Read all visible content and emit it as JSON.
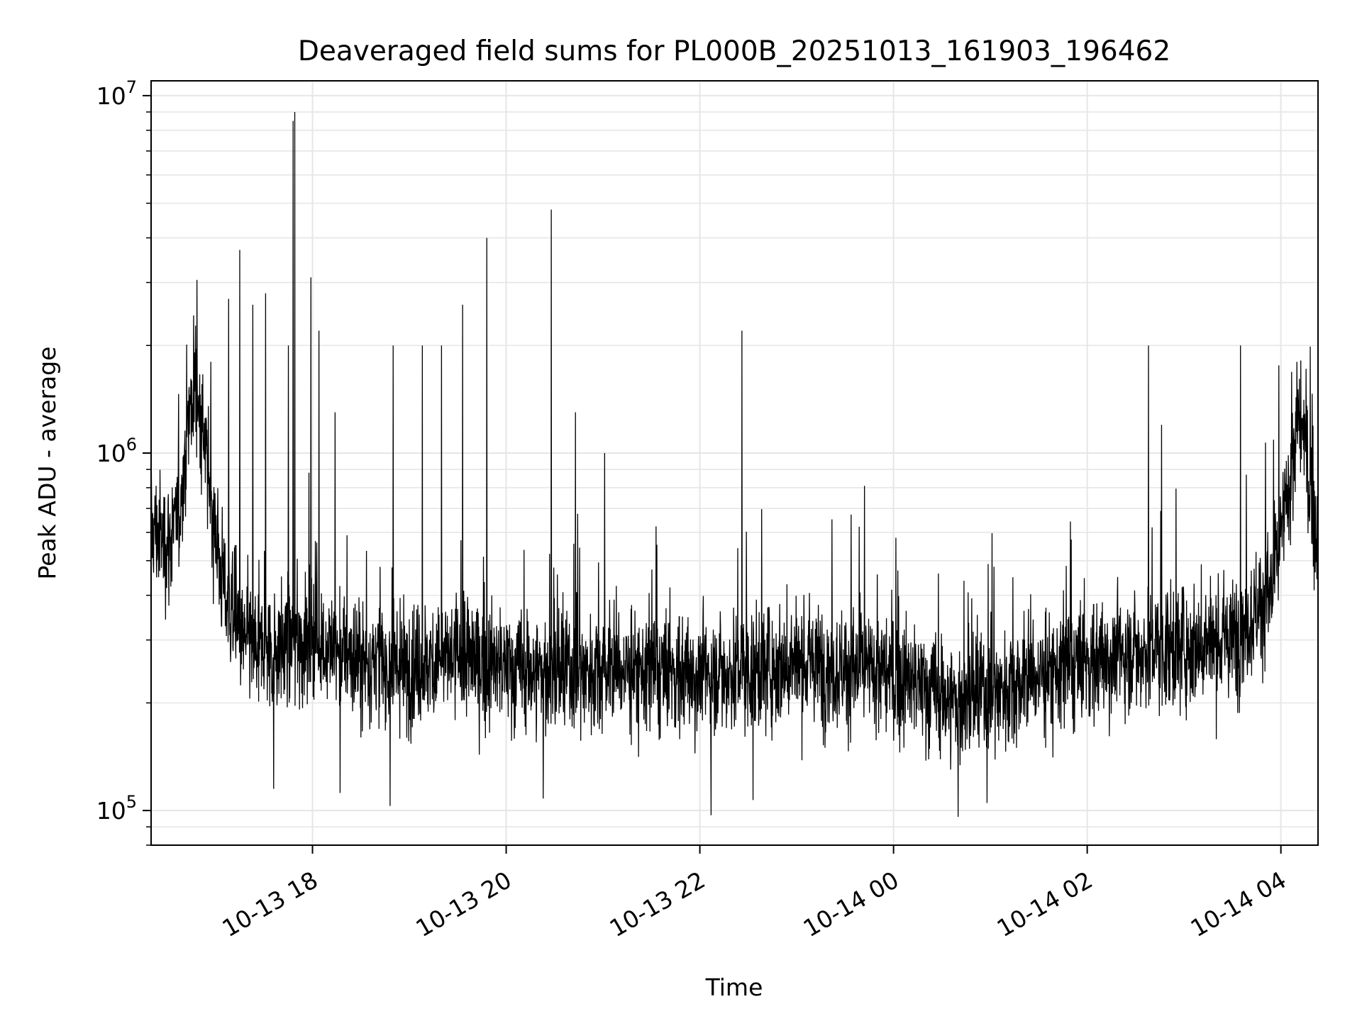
{
  "chart_data": {
    "type": "line",
    "title": "Deaveraged field sums for PL000B_20251013_161903_196462",
    "xlabel": "Time",
    "ylabel": "Peak ADU - average",
    "yscale": "log",
    "ylim": [
      80000,
      11000000
    ],
    "xlim": [
      "2025-10-13 16:20",
      "2025-10-14 04:23"
    ],
    "grid": true,
    "line_color": "#000000",
    "x_ticks": [
      {
        "time": "2025-10-13 18:00",
        "label": "10-13 18"
      },
      {
        "time": "2025-10-13 20:00",
        "label": "10-13 20"
      },
      {
        "time": "2025-10-13 22:00",
        "label": "10-13 22"
      },
      {
        "time": "2025-10-14 00:00",
        "label": "10-14 00"
      },
      {
        "time": "2025-10-14 02:00",
        "label": "10-14 02"
      },
      {
        "time": "2025-10-14 04:00",
        "label": "10-14 04"
      }
    ],
    "y_ticks": [
      {
        "value": 100000,
        "base": "10",
        "exp": "5"
      },
      {
        "value": 1000000,
        "base": "10",
        "exp": "6"
      },
      {
        "value": 10000000,
        "base": "10",
        "exp": "7"
      }
    ],
    "series_points": [
      [
        "2025-10-13 16:20",
        620000
      ],
      [
        "2025-10-13 16:30",
        560000
      ],
      [
        "2025-10-13 16:37",
        640000
      ],
      [
        "2025-10-13 16:43",
        1200000
      ],
      [
        "2025-10-13 16:47",
        1600000
      ],
      [
        "2025-10-13 16:52",
        1150000
      ],
      [
        "2025-10-13 17:00",
        600000
      ],
      [
        "2025-10-13 17:05",
        420000
      ],
      [
        "2025-10-13 17:15",
        300000
      ],
      [
        "2025-10-13 17:30",
        280000
      ],
      [
        "2025-10-13 18:00",
        300000
      ],
      [
        "2025-10-13 18:30",
        260000
      ],
      [
        "2025-10-13 19:00",
        250000
      ],
      [
        "2025-10-13 19:30",
        270000
      ],
      [
        "2025-10-13 20:00",
        250000
      ],
      [
        "2025-10-13 20:30",
        240000
      ],
      [
        "2025-10-13 21:00",
        250000
      ],
      [
        "2025-10-13 22:00",
        240000
      ],
      [
        "2025-10-13 23:00",
        260000
      ],
      [
        "2025-10-14 00:00",
        240000
      ],
      [
        "2025-10-14 00:40",
        200000
      ],
      [
        "2025-10-14 01:30",
        240000
      ],
      [
        "2025-10-14 02:30",
        280000
      ],
      [
        "2025-10-14 03:30",
        300000
      ],
      [
        "2025-10-14 03:55",
        420000
      ],
      [
        "2025-10-14 04:05",
        800000
      ],
      [
        "2025-10-14 04:12",
        1300000
      ],
      [
        "2025-10-14 04:17",
        900000
      ],
      [
        "2025-10-14 04:23",
        550000
      ]
    ],
    "spikes": [
      [
        "2025-10-13 16:57",
        1800000
      ],
      [
        "2025-10-13 17:08",
        2700000
      ],
      [
        "2025-10-13 17:15",
        3700000
      ],
      [
        "2025-10-13 17:23",
        2600000
      ],
      [
        "2025-10-13 17:31",
        2800000
      ],
      [
        "2025-10-13 17:45",
        2000000
      ],
      [
        "2025-10-13 17:48",
        8500000
      ],
      [
        "2025-10-13 17:49",
        9000000
      ],
      [
        "2025-10-13 17:59",
        3100000
      ],
      [
        "2025-10-13 18:04",
        2200000
      ],
      [
        "2025-10-13 18:14",
        1300000
      ],
      [
        "2025-10-13 18:50",
        2000000
      ],
      [
        "2025-10-13 19:08",
        2000000
      ],
      [
        "2025-10-13 19:20",
        2000000
      ],
      [
        "2025-10-13 19:33",
        2600000
      ],
      [
        "2025-10-13 19:48",
        4000000
      ],
      [
        "2025-10-13 20:28",
        4800000
      ],
      [
        "2025-10-13 20:43",
        1300000
      ],
      [
        "2025-10-13 21:01",
        1000000
      ],
      [
        "2025-10-13 22:26",
        2200000
      ],
      [
        "2025-10-14 02:38",
        2000000
      ],
      [
        "2025-10-14 02:46",
        1200000
      ],
      [
        "2025-10-14 03:35",
        2000000
      ],
      [
        "2025-10-14 04:10",
        1800000
      ]
    ],
    "dips": [
      [
        "2025-10-13 17:36",
        115000
      ],
      [
        "2025-10-13 18:17",
        112000
      ],
      [
        "2025-10-13 18:48",
        103000
      ],
      [
        "2025-10-13 20:23",
        108000
      ],
      [
        "2025-10-13 22:07",
        97000
      ],
      [
        "2025-10-13 22:33",
        107000
      ],
      [
        "2025-10-14 00:40",
        96000
      ],
      [
        "2025-10-14 00:58",
        105000
      ]
    ]
  }
}
